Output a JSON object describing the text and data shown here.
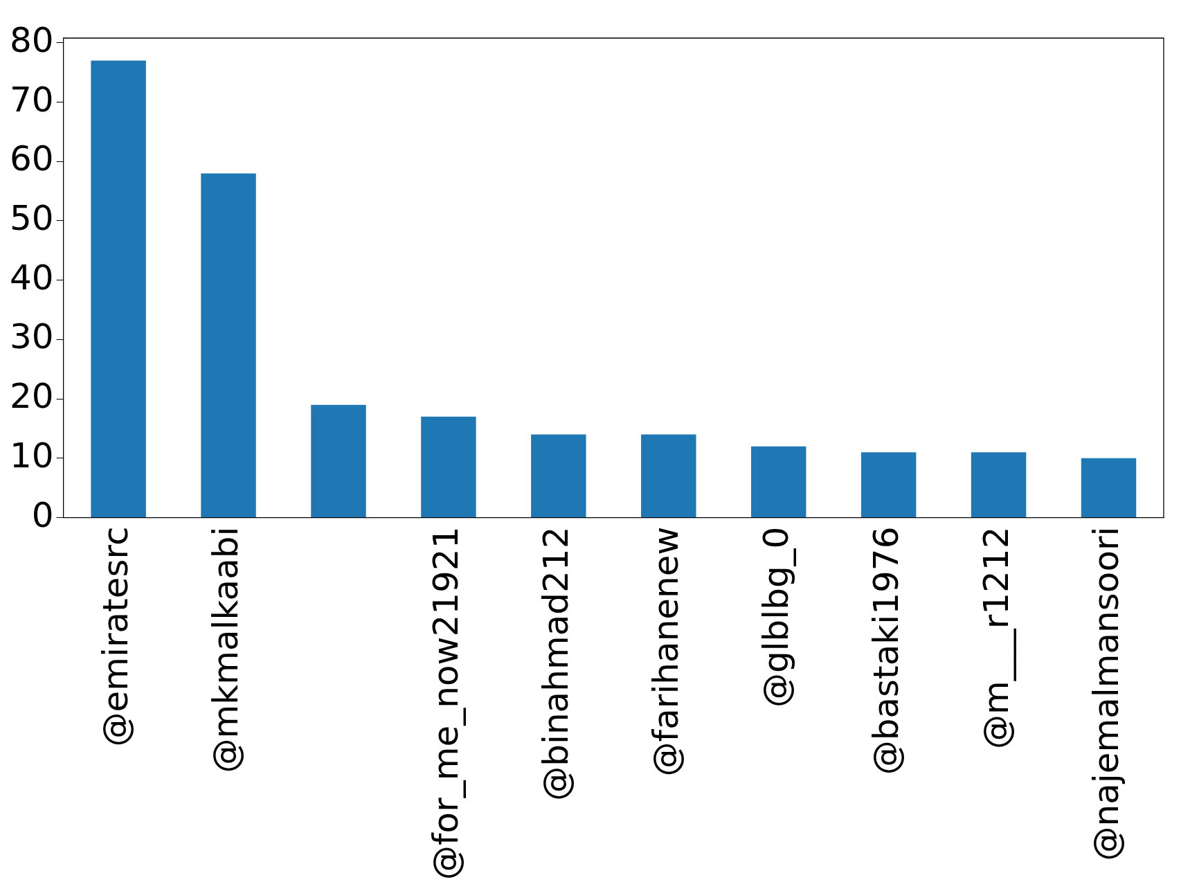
{
  "chart_data": {
    "type": "bar",
    "categories": [
      "@emiratesrc",
      "@mkmalkaabi",
      null,
      "@for_me_now21921",
      "@binahmad212",
      "@farihanenew",
      "@glblbg_0",
      "@bastaki1976",
      "@m___r1212",
      "@najemalmansoori"
    ],
    "values": [
      77,
      58,
      19,
      17,
      14,
      14,
      12,
      11,
      11,
      10
    ],
    "color": "#1f77b4",
    "ylim": [
      0,
      80.8
    ],
    "yticks": [
      0,
      10,
      20,
      30,
      40,
      50,
      60,
      70,
      80
    ],
    "grid": false,
    "legend": false
  }
}
